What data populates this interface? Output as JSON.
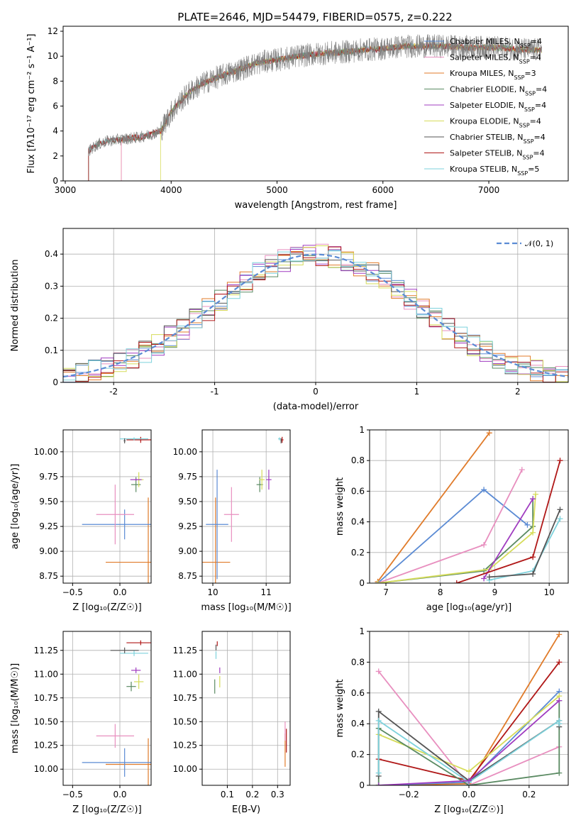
{
  "figure_title": "PLATE=2646, MJD=54479, FIBERID=0575, z=0.222",
  "colors": {
    "Chabrier MILES": "#5b8bd4",
    "Salpeter MILES": "#e88fbf",
    "Kroupa MILES": "#e07b2a",
    "Chabrier ELODIE": "#5a8a62",
    "Salpeter ELODIE": "#a03cc0",
    "Kroupa ELODIE": "#d6dc5a",
    "Chabrier STELIB": "#555555",
    "Salpeter STELIB": "#b01818",
    "Kroupa STELIB": "#7ed2dc"
  },
  "chart_data": [
    {
      "id": "spectrum",
      "type": "line",
      "xlabel": "wavelength [Angstrom, rest frame]",
      "ylabel": "Flux [fλ10⁻¹⁷ erg cm⁻² s⁻¹ A⁻¹]",
      "xlim": [
        2980,
        7750
      ],
      "ylim": [
        0,
        12.4
      ],
      "xticks": [
        3000,
        4000,
        5000,
        6000,
        7000
      ],
      "yticks": [
        0,
        2,
        4,
        6,
        8,
        10,
        12
      ],
      "legend": [
        {
          "name": "Chabrier MILES, N",
          "sub": "SSP",
          "tail": "=4"
        },
        {
          "name": "Salpeter MILES, N",
          "sub": "SSP",
          "tail": "=4"
        },
        {
          "name": "Kroupa MILES, N",
          "sub": "SSP",
          "tail": "=3"
        },
        {
          "name": "Chabrier ELODIE, N",
          "sub": "SSP",
          "tail": "=4"
        },
        {
          "name": "Salpeter ELODIE, N",
          "sub": "SSP",
          "tail": "=4"
        },
        {
          "name": "Kroupa ELODIE, N",
          "sub": "SSP",
          "tail": "=4"
        },
        {
          "name": "Chabrier STELIB, N",
          "sub": "SSP",
          "tail": "=4"
        },
        {
          "name": "Salpeter STELIB, N",
          "sub": "SSP",
          "tail": "=4"
        },
        {
          "name": "Kroupa STELIB, N",
          "sub": "SSP",
          "tail": "=5"
        }
      ],
      "legend_placement": "right",
      "continuum": {
        "x": [
          3220,
          3300,
          3400,
          3500,
          3600,
          3700,
          3800,
          3900,
          4000,
          4100,
          4200,
          4300,
          4400,
          4500,
          4600,
          4700,
          4800,
          4900,
          5000,
          5200,
          5400,
          5600,
          5800,
          6000,
          6200,
          6400,
          6600,
          6800,
          7000,
          7200,
          7400,
          7500
        ],
        "y": [
          2.4,
          2.9,
          3.2,
          3.3,
          3.4,
          3.5,
          3.7,
          4.0,
          5.5,
          6.5,
          7.3,
          7.8,
          8.2,
          8.5,
          8.8,
          9.1,
          9.4,
          9.6,
          9.7,
          10.0,
          10.2,
          10.3,
          10.5,
          10.6,
          10.8,
          10.8,
          10.8,
          10.7,
          10.7,
          10.6,
          10.5,
          10.5
        ]
      },
      "noise_amplitude": 0.8,
      "model_starts": {
        "Kroupa STELIB": 3220,
        "Kroupa MILES": 3530,
        "Kroupa ELODIE": 3900,
        "Salpeter MILES": 3530
      }
    },
    {
      "id": "residuals",
      "type": "bar",
      "xlabel": "(data-model)/error",
      "ylabel": "Normed distribution",
      "xlim": [
        -2.5,
        2.5
      ],
      "ylim": [
        0,
        0.48
      ],
      "xticks": [
        -2,
        -1,
        0,
        1,
        2
      ],
      "yticks": [
        0.0,
        0.1,
        0.2,
        0.3,
        0.4
      ],
      "grid": true,
      "legend": "𝒩(0, 1)",
      "legend_placement": "upper right",
      "gaussian": {
        "mean": 0,
        "sigma": 1
      },
      "bin_edges_range": [
        -2.5,
        2.5
      ],
      "bins": 40
    },
    {
      "id": "age-vs-Z",
      "type": "scatter",
      "xlabel": "Z [log₁₀(Z/Z☉)]",
      "ylabel": "age  [log₁₀(age/yr)]",
      "xlim": [
        -0.6,
        0.33
      ],
      "ylim": [
        8.68,
        10.22
      ],
      "xticks": [
        -0.5,
        0.0
      ],
      "yticks": [
        8.75,
        9.0,
        9.25,
        9.5,
        9.75,
        10.0
      ],
      "xticklabels": [
        "−0.5",
        "0.0"
      ],
      "yticklabels": [
        "8.75",
        "9.00",
        "9.25",
        "9.50",
        "9.75",
        "10.00"
      ],
      "grid": true,
      "points": [
        {
          "series": "Kroupa MILES",
          "x": 0.3,
          "y": 8.89,
          "xerr": 0.9,
          "yerr": 1.3
        },
        {
          "series": "Chabrier MILES",
          "x": 0.05,
          "y": 9.27,
          "xerr": 0.9,
          "yerr": 0.3
        },
        {
          "series": "Salpeter MILES",
          "x": -0.05,
          "y": 9.37,
          "xerr": 0.4,
          "yerr": 0.6
        },
        {
          "series": "Chabrier ELODIE",
          "x": 0.17,
          "y": 9.67,
          "xerr": 0.1,
          "yerr": 0.15
        },
        {
          "series": "Kroupa ELODIE",
          "x": 0.2,
          "y": 9.72,
          "xerr": 0.1,
          "yerr": 0.15
        },
        {
          "series": "Salpeter ELODIE",
          "x": 0.17,
          "y": 9.72,
          "xerr": 0.12,
          "yerr": 0.02
        },
        {
          "series": "Salpeter STELIB",
          "x": 0.22,
          "y": 10.12,
          "xerr": 0.3,
          "yerr": 0.06
        },
        {
          "series": "Kroupa STELIB",
          "x": 0.15,
          "y": 10.13,
          "xerr": 0.3,
          "yerr": 0.03
        },
        {
          "series": "Chabrier STELIB",
          "x": 0.05,
          "y": 10.11,
          "xerr": 0.02,
          "yerr": 0.05
        }
      ]
    },
    {
      "id": "age-vs-mass",
      "type": "scatter",
      "xlabel": "mass [log₁₀(M/M☉)]",
      "ylabel": "",
      "xlim": [
        9.8,
        11.45
      ],
      "ylim": [
        8.68,
        10.22
      ],
      "xticks": [
        10,
        11
      ],
      "yticks": [
        8.75,
        9.0,
        9.25,
        9.5,
        9.75,
        10.0
      ],
      "yticklabels": [
        "8.75",
        "9.00",
        "9.25",
        "9.50",
        "9.75",
        "10.00"
      ],
      "grid": true,
      "points": [
        {
          "series": "Kroupa MILES",
          "x": 10.05,
          "y": 8.89,
          "xerr": 0.55,
          "yerr": 1.3
        },
        {
          "series": "Chabrier MILES",
          "x": 10.08,
          "y": 9.27,
          "xerr": 0.42,
          "yerr": 1.1
        },
        {
          "series": "Salpeter MILES",
          "x": 10.35,
          "y": 9.37,
          "xerr": 0.28,
          "yerr": 0.55
        },
        {
          "series": "Chabrier ELODIE",
          "x": 10.88,
          "y": 9.67,
          "xerr": 0.12,
          "yerr": 0.15
        },
        {
          "series": "Kroupa ELODIE",
          "x": 10.92,
          "y": 9.72,
          "xerr": 0.1,
          "yerr": 0.2
        },
        {
          "series": "Salpeter ELODIE",
          "x": 11.05,
          "y": 9.72,
          "xerr": 0.1,
          "yerr": 0.2
        },
        {
          "series": "Salpeter STELIB",
          "x": 11.3,
          "y": 10.12,
          "xerr": 0.05,
          "yerr": 0.06
        },
        {
          "series": "Kroupa STELIB",
          "x": 11.25,
          "y": 10.13,
          "xerr": 0.05,
          "yerr": 0.03
        },
        {
          "series": "Chabrier STELIB",
          "x": 11.28,
          "y": 10.11,
          "xerr": 0.02,
          "yerr": 0.05
        }
      ]
    },
    {
      "id": "mass-weight-vs-age",
      "type": "line",
      "xlabel": "age  [log₁₀(age/yr)]",
      "ylabel": "mass weight",
      "xlim": [
        6.7,
        10.35
      ],
      "ylim": [
        0,
        1.0
      ],
      "xticks": [
        7,
        8,
        9,
        10
      ],
      "yticks": [
        0.0,
        0.2,
        0.4,
        0.6,
        0.8,
        1.0
      ],
      "grid": true,
      "series": [
        {
          "name": "Kroupa MILES",
          "x": [
            6.85,
            8.9
          ],
          "y": [
            0.01,
            0.98
          ]
        },
        {
          "name": "Chabrier MILES",
          "x": [
            6.85,
            8.8,
            9.6
          ],
          "y": [
            0.0,
            0.61,
            0.38
          ]
        },
        {
          "name": "Salpeter MILES",
          "x": [
            6.85,
            8.8,
            9.5
          ],
          "y": [
            0.0,
            0.25,
            0.74
          ]
        },
        {
          "name": "Chabrier ELODIE",
          "x": [
            6.85,
            8.8,
            9.7,
            9.7
          ],
          "y": [
            0.0,
            0.08,
            0.37,
            0.55
          ]
        },
        {
          "name": "Kroupa ELODIE",
          "x": [
            6.85,
            8.9,
            9.7,
            9.75
          ],
          "y": [
            0.0,
            0.09,
            0.33,
            0.58
          ]
        },
        {
          "name": "Salpeter ELODIE",
          "x": [
            8.8,
            9.7
          ],
          "y": [
            0.03,
            0.55
          ]
        },
        {
          "name": "Salpeter STELIB",
          "x": [
            8.3,
            9.7,
            10.2
          ],
          "y": [
            0.0,
            0.17,
            0.8
          ]
        },
        {
          "name": "Kroupa STELIB",
          "x": [
            8.9,
            9.7,
            10.2
          ],
          "y": [
            0.02,
            0.08,
            0.42
          ]
        },
        {
          "name": "Chabrier STELIB",
          "x": [
            8.9,
            9.7,
            10.2
          ],
          "y": [
            0.04,
            0.06,
            0.48
          ]
        }
      ]
    },
    {
      "id": "mass-vs-Z",
      "type": "scatter",
      "xlabel": "Z [log₁₀(Z/Z☉)]",
      "ylabel": "mass [log₁₀(M/M☉)]",
      "xlim": [
        -0.6,
        0.33
      ],
      "ylim": [
        9.83,
        11.45
      ],
      "xticks": [
        -0.5,
        0.0
      ],
      "yticks": [
        10.0,
        10.25,
        10.5,
        10.75,
        11.0,
        11.25
      ],
      "xticklabels": [
        "−0.5",
        "0.0"
      ],
      "yticklabels": [
        "10.00",
        "10.25",
        "10.50",
        "10.75",
        "11.00",
        "11.25"
      ],
      "grid": true,
      "points": [
        {
          "series": "Kroupa MILES",
          "x": 0.3,
          "y": 10.05,
          "xerr": 0.9,
          "yerr": 0.55
        },
        {
          "series": "Chabrier MILES",
          "x": 0.05,
          "y": 10.07,
          "xerr": 0.9,
          "yerr": 0.3
        },
        {
          "series": "Salpeter MILES",
          "x": -0.05,
          "y": 10.35,
          "xerr": 0.4,
          "yerr": 0.25
        },
        {
          "series": "Chabrier ELODIE",
          "x": 0.12,
          "y": 10.87,
          "xerr": 0.1,
          "yerr": 0.1
        },
        {
          "series": "Kroupa ELODIE",
          "x": 0.2,
          "y": 10.92,
          "xerr": 0.1,
          "yerr": 0.15
        },
        {
          "series": "Salpeter ELODIE",
          "x": 0.17,
          "y": 11.04,
          "xerr": 0.1,
          "yerr": 0.06
        },
        {
          "series": "Salpeter STELIB",
          "x": 0.22,
          "y": 11.33,
          "xerr": 0.3,
          "yerr": 0.05
        },
        {
          "series": "Kroupa STELIB",
          "x": 0.15,
          "y": 11.22,
          "xerr": 0.3,
          "yerr": 0.06
        },
        {
          "series": "Chabrier STELIB",
          "x": 0.05,
          "y": 11.25,
          "xerr": 0.3,
          "yerr": 0.06
        }
      ]
    },
    {
      "id": "mass-vs-EBV",
      "type": "scatter",
      "xlabel": "E(B-V)",
      "ylabel": "",
      "xlim": [
        0.0,
        0.35
      ],
      "ylim": [
        9.83,
        11.45
      ],
      "xticks": [
        0.1,
        0.2,
        0.3
      ],
      "yticks": [
        10.0,
        10.25,
        10.5,
        10.75,
        11.0,
        11.25
      ],
      "yticklabels": [
        "10.00",
        "10.25",
        "10.50",
        "10.75",
        "11.00",
        "11.25"
      ],
      "grid": true,
      "points": [
        {
          "series": "Kroupa MILES",
          "x": 0.33,
          "y": 10.2,
          "xerr": 0.0,
          "yerr": 0.35
        },
        {
          "series": "Salpeter MILES",
          "x": 0.33,
          "y": 10.4,
          "xerr": 0.0,
          "yerr": 0.2
        },
        {
          "series": "Salpeter STELIB",
          "x": 0.335,
          "y": 10.3,
          "xerr": 0.0,
          "yerr": 0.25
        },
        {
          "series": "Chabrier ELODIE",
          "x": 0.05,
          "y": 10.87,
          "xerr": 0.0,
          "yerr": 0.15
        },
        {
          "series": "Kroupa ELODIE",
          "x": 0.07,
          "y": 10.92,
          "xerr": 0.0,
          "yerr": 0.12
        },
        {
          "series": "Salpeter ELODIE",
          "x": 0.07,
          "y": 11.04,
          "xerr": 0.0,
          "yerr": 0.06
        },
        {
          "series": "Chabrier STELIB",
          "x": 0.055,
          "y": 11.28,
          "xerr": 0.0,
          "yerr": 0.06
        },
        {
          "series": "Kroupa STELIB",
          "x": 0.055,
          "y": 11.2,
          "xerr": 0.0,
          "yerr": 0.08
        },
        {
          "series": "Salpeter STELIB",
          "x": 0.06,
          "y": 11.32,
          "xerr": 0.0,
          "yerr": 0.05
        }
      ]
    },
    {
      "id": "mass-weight-vs-Z",
      "type": "line",
      "xlabel": "Z [log₁₀(Z/Z☉)]",
      "ylabel": "mass weight",
      "xlim": [
        -0.33,
        0.33
      ],
      "ylim": [
        0,
        1.0
      ],
      "xticks": [
        -0.2,
        0.0,
        0.2
      ],
      "yticks": [
        0.0,
        0.2,
        0.4,
        0.6,
        0.8,
        1.0
      ],
      "xticklabels": [
        "−0.2",
        "0.0",
        "0.2"
      ],
      "grid": true,
      "series": [
        {
          "name": "Kroupa MILES",
          "x": [
            -0.3,
            0.0,
            0.3
          ],
          "y": [
            0.0,
            0.01,
            0.98
          ]
        },
        {
          "name": "Salpeter STELIB",
          "x": [
            -0.3,
            0.0,
            0.3
          ],
          "y": [
            0.17,
            0.03,
            0.8
          ]
        },
        {
          "name": "Chabrier MILES",
          "x": [
            -0.3,
            0.0,
            0.3
          ],
          "y": [
            0.0,
            0.02,
            0.61
          ]
        },
        {
          "name": "Salpeter MILES",
          "x": [
            -0.3,
            0.0,
            0.3
          ],
          "y": [
            0.74,
            0.0,
            0.25
          ]
        },
        {
          "name": "Kroupa ELODIE",
          "x": [
            -0.3,
            0.0,
            0.3
          ],
          "y": [
            0.33,
            0.09,
            0.58
          ]
        },
        {
          "name": "Chabrier ELODIE",
          "x": [
            -0.3,
            -0.3,
            0.0,
            0.3,
            0.3
          ],
          "y": [
            0.0,
            0.37,
            0.0,
            0.08,
            0.55
          ]
        },
        {
          "name": "Chabrier STELIB",
          "x": [
            -0.3,
            -0.3,
            0.0,
            0.3,
            0.3
          ],
          "y": [
            0.06,
            0.48,
            0.03,
            0.42,
            0.38
          ]
        },
        {
          "name": "Kroupa STELIB",
          "x": [
            -0.3,
            -0.3,
            0.0,
            0.3,
            0.3
          ],
          "y": [
            0.08,
            0.42,
            0.02,
            0.42,
            0.4
          ]
        },
        {
          "name": "Salpeter ELODIE",
          "x": [
            -0.3,
            0.0,
            0.3
          ],
          "y": [
            0.0,
            0.03,
            0.55
          ]
        }
      ]
    }
  ]
}
